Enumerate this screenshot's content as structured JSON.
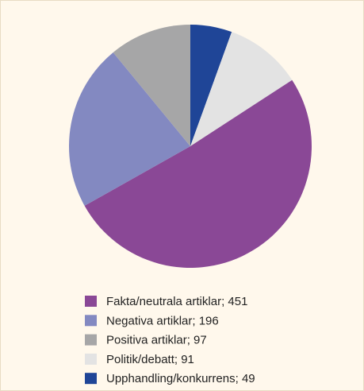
{
  "chart_data": {
    "type": "pie",
    "categories": [
      "Fakta/neutrala artiklar; 451",
      "Negativa artiklar; 196",
      "Positiva artiklar; 97",
      "Politik/debatt; 91",
      "Upphandling/konkurrens; 49"
    ],
    "values": [
      451,
      196,
      97,
      91,
      49
    ],
    "colors": [
      "#8a4896",
      "#8389c1",
      "#a6a6a7",
      "#e3e3e3",
      "#1f4597"
    ]
  }
}
